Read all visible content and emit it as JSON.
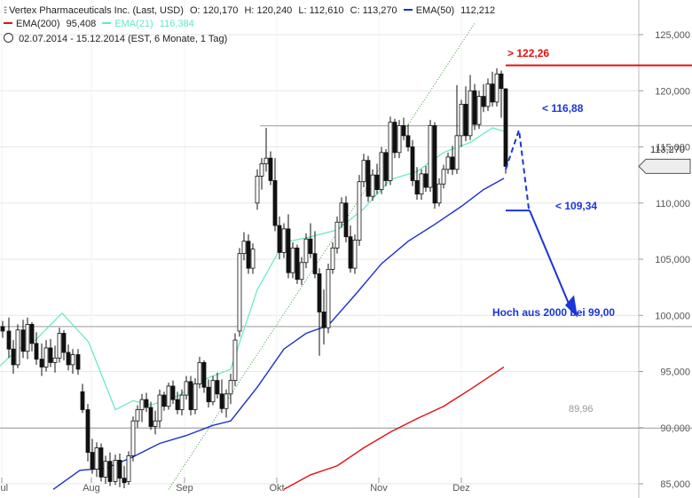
{
  "legend": {
    "line1": {
      "icon": "ohlc-bars-icon",
      "title": "Vertex Pharmaceuticals Inc. (Last, USD)",
      "o": "O: 120,170",
      "h": "H: 120,240",
      "l": "L: 112,610",
      "c": "C: 113,270",
      "ema50_label": "EMA(50)",
      "ema50_value": "112,212"
    },
    "line2": {
      "ema200_label": "EMA(200)",
      "ema200_value": "95,408",
      "ema21_label": "EMA(21)",
      "ema21_value": "116,384"
    },
    "line3": {
      "icon": "clock-icon",
      "text": "02.07.2014 - 15.12.2014 (EST, 6 Monate, 1 Tag)"
    }
  },
  "colors": {
    "ema50": "#1a2fd6",
    "ema21": "#5fe8c8",
    "ema200": "#e31010",
    "target": "#1a35d8",
    "resist": "#e31010",
    "trend": "#3a9a3a"
  },
  "annotations": {
    "resist_122": "> 122,26",
    "level_11688": "< 116,88",
    "level_10934": "< 109,34",
    "hoch": "Hoch aus 2000 bei 99,00",
    "level_8996": "89,96",
    "last_price_tag": "113,270"
  },
  "chart_data": {
    "type": "candlestick",
    "title": "Vertex Pharmaceuticals Inc. (Last, USD)",
    "x_ticks": [
      "Jul",
      "Aug",
      "Sep",
      "Okt",
      "Nov",
      "Dez"
    ],
    "y_ticks": [
      "85,000",
      "90,000",
      "95,000",
      "100,000",
      "105,000",
      "110,000",
      "115,000",
      "120,000",
      "125,000"
    ],
    "ylim": [
      84.5,
      126.0
    ],
    "ohlc_last": {
      "open": 120.17,
      "high": 120.24,
      "low": 112.61,
      "close": 113.27
    },
    "ema50_last": 112.212,
    "ema21_last": 116.384,
    "ema200_last": 95.408,
    "horizontal_levels": [
      116.88,
      99.0,
      89.96,
      122.26
    ],
    "ema21_samples": [
      [
        0,
        95.5
      ],
      [
        20,
        97.0
      ],
      [
        40,
        97.8
      ],
      [
        70,
        100.2
      ],
      [
        100,
        97.6
      ],
      [
        130,
        91.6
      ],
      [
        150,
        92.4
      ],
      [
        170,
        92.0
      ],
      [
        200,
        92.8
      ],
      [
        230,
        94.3
      ],
      [
        260,
        95.2
      ],
      [
        290,
        102.3
      ],
      [
        320,
        106.5
      ],
      [
        345,
        106.9
      ],
      [
        380,
        107.6
      ],
      [
        410,
        109.5
      ],
      [
        440,
        112.1
      ],
      [
        470,
        112.8
      ],
      [
        500,
        114.5
      ],
      [
        530,
        115.4
      ],
      [
        555,
        116.7
      ],
      [
        568,
        116.4
      ]
    ],
    "ema50_samples": [
      [
        60,
        84.5
      ],
      [
        90,
        86.2
      ],
      [
        120,
        86.4
      ],
      [
        150,
        87.4
      ],
      [
        180,
        88.6
      ],
      [
        210,
        89.3
      ],
      [
        240,
        90.2
      ],
      [
        260,
        90.6
      ],
      [
        290,
        93.6
      ],
      [
        320,
        97.0
      ],
      [
        345,
        98.4
      ],
      [
        370,
        99.1
      ],
      [
        400,
        101.8
      ],
      [
        430,
        104.6
      ],
      [
        460,
        106.6
      ],
      [
        490,
        108.1
      ],
      [
        520,
        109.7
      ],
      [
        545,
        111.2
      ],
      [
        568,
        112.2
      ]
    ],
    "ema200_samples": [
      [
        320,
        84.5
      ],
      [
        350,
        85.8
      ],
      [
        380,
        86.6
      ],
      [
        410,
        88.2
      ],
      [
        440,
        89.6
      ],
      [
        470,
        90.8
      ],
      [
        500,
        91.9
      ],
      [
        530,
        93.4
      ],
      [
        568,
        95.4
      ]
    ],
    "trendline": [
      [
        190,
        84.5
      ],
      [
        535,
        126.0
      ]
    ],
    "projection": [
      {
        "price": 116.88,
        "label": "< 116,88"
      },
      {
        "price": 109.34,
        "label": "< 109,34"
      },
      {
        "price": 99.0,
        "label": "Hoch aus 2000 bei 99,00"
      }
    ],
    "candles": [
      [
        3,
        99.0,
        99.5,
        98.0,
        98.6
      ],
      [
        10,
        98.6,
        99.8,
        96.2,
        97.0
      ],
      [
        15,
        97.0,
        97.8,
        94.8,
        95.6
      ],
      [
        20,
        95.6,
        99.2,
        95.3,
        98.7
      ],
      [
        26,
        98.7,
        99.6,
        96.2,
        96.8
      ],
      [
        31,
        96.8,
        99.8,
        96.1,
        99.2
      ],
      [
        36,
        99.2,
        99.4,
        96.8,
        97.5
      ],
      [
        41,
        97.5,
        98.5,
        95.6,
        96.1
      ],
      [
        47,
        96.1,
        97.5,
        94.6,
        95.4
      ],
      [
        52,
        95.4,
        97.8,
        95.0,
        97.1
      ],
      [
        57,
        97.1,
        97.9,
        95.4,
        95.8
      ],
      [
        62,
        95.8,
        97.3,
        94.9,
        96.2
      ],
      [
        67,
        96.2,
        98.9,
        95.8,
        98.4
      ],
      [
        72,
        98.4,
        98.7,
        96.0,
        96.7
      ],
      [
        77,
        96.7,
        97.4,
        95.1,
        95.6
      ],
      [
        82,
        95.6,
        97.0,
        94.8,
        96.5
      ],
      [
        88,
        96.5,
        97.0,
        94.7,
        95.2
      ],
      [
        93,
        93.2,
        93.9,
        91.3,
        91.6
      ],
      [
        99,
        91.6,
        92.1,
        87.0,
        87.8
      ],
      [
        104,
        87.8,
        89.0,
        85.9,
        86.3
      ],
      [
        109,
        86.3,
        88.7,
        85.6,
        88.2
      ],
      [
        114,
        88.2,
        88.6,
        85.2,
        85.6
      ],
      [
        119,
        85.6,
        87.5,
        85.0,
        87.0
      ],
      [
        124,
        87.0,
        87.8,
        84.8,
        85.2
      ],
      [
        130,
        85.2,
        87.6,
        84.9,
        87.1
      ],
      [
        135,
        87.1,
        87.7,
        84.7,
        85.5
      ],
      [
        140,
        85.5,
        86.6,
        84.6,
        85.1
      ],
      [
        145,
        85.2,
        87.9,
        84.9,
        87.5
      ],
      [
        150,
        87.5,
        91.0,
        87.0,
        90.6
      ],
      [
        155,
        90.6,
        92.0,
        90.0,
        91.6
      ],
      [
        160,
        91.6,
        93.0,
        90.5,
        92.5
      ],
      [
        165,
        92.5,
        93.1,
        91.4,
        91.8
      ],
      [
        170,
        91.8,
        92.3,
        89.8,
        90.1
      ],
      [
        175,
        90.1,
        91.5,
        89.4,
        90.6
      ],
      [
        180,
        90.6,
        93.4,
        90.0,
        92.9
      ],
      [
        185,
        92.9,
        93.2,
        91.5,
        91.9
      ],
      [
        190,
        91.9,
        94.0,
        91.6,
        93.7
      ],
      [
        195,
        93.7,
        94.2,
        92.1,
        92.5
      ],
      [
        200,
        92.5,
        93.2,
        91.2,
        91.6
      ],
      [
        205,
        91.6,
        93.4,
        91.1,
        92.9
      ],
      [
        210,
        92.9,
        94.6,
        92.5,
        94.1
      ],
      [
        215,
        94.1,
        94.6,
        91.1,
        91.6
      ],
      [
        220,
        91.6,
        94.4,
        91.2,
        93.9
      ],
      [
        225,
        93.9,
        96.3,
        93.5,
        95.8
      ],
      [
        230,
        95.8,
        96.0,
        93.1,
        93.6
      ],
      [
        235,
        93.6,
        94.3,
        91.8,
        92.3
      ],
      [
        240,
        92.3,
        94.6,
        92.0,
        94.2
      ],
      [
        245,
        94.2,
        94.9,
        92.6,
        93.0
      ],
      [
        250,
        93.0,
        94.3,
        91.3,
        91.7
      ],
      [
        255,
        91.7,
        93.4,
        90.9,
        93.0
      ],
      [
        260,
        93.0,
        94.8,
        92.1,
        94.2
      ],
      [
        265,
        94.2,
        98.4,
        93.7,
        97.8
      ],
      [
        270,
        98.6,
        106.0,
        98.1,
        105.5
      ],
      [
        275,
        105.5,
        107.4,
        104.9,
        106.6
      ],
      [
        280,
        106.6,
        107.2,
        103.7,
        104.2
      ],
      [
        285,
        104.2,
        106.4,
        103.7,
        105.9
      ],
      [
        290,
        110.0,
        113.0,
        109.4,
        112.4
      ],
      [
        295,
        112.4,
        114.0,
        111.2,
        113.5
      ],
      [
        300,
        113.5,
        116.7,
        112.8,
        114.0
      ],
      [
        305,
        114.0,
        114.6,
        111.6,
        112.0
      ],
      [
        310,
        112.0,
        114.0,
        107.5,
        108.0
      ],
      [
        315,
        108.0,
        108.8,
        105.0,
        105.6
      ],
      [
        320,
        105.6,
        108.2,
        105.1,
        107.7
      ],
      [
        325,
        107.7,
        109.0,
        103.3,
        103.8
      ],
      [
        330,
        103.8,
        106.5,
        103.3,
        106.0
      ],
      [
        335,
        106.0,
        106.3,
        102.8,
        103.2
      ],
      [
        340,
        103.2,
        105.2,
        102.7,
        104.7
      ],
      [
        345,
        104.7,
        107.3,
        104.2,
        106.8
      ],
      [
        350,
        106.8,
        108.2,
        105.1,
        105.5
      ],
      [
        355,
        105.5,
        107.5,
        103.3,
        103.7
      ],
      [
        360,
        103.7,
        104.2,
        96.4,
        100.3
      ],
      [
        365,
        100.3,
        102.3,
        97.4,
        98.9
      ],
      [
        370,
        98.9,
        104.6,
        98.4,
        104.1
      ],
      [
        375,
        104.1,
        106.5,
        103.7,
        106.0
      ],
      [
        380,
        106.0,
        108.8,
        105.5,
        108.3
      ],
      [
        385,
        108.3,
        110.5,
        107.8,
        110.0
      ],
      [
        390,
        110.0,
        110.6,
        106.5,
        107.0
      ],
      [
        395,
        107.0,
        108.0,
        103.8,
        104.2
      ],
      [
        400,
        104.2,
        107.2,
        103.7,
        106.7
      ],
      [
        405,
        106.7,
        112.5,
        106.2,
        111.9
      ],
      [
        410,
        111.9,
        114.4,
        111.4,
        113.8
      ],
      [
        415,
        113.8,
        114.2,
        110.1,
        110.6
      ],
      [
        420,
        110.6,
        113.0,
        110.2,
        112.5
      ],
      [
        425,
        112.5,
        113.5,
        110.8,
        111.2
      ],
      [
        430,
        111.2,
        115.0,
        110.8,
        114.5
      ],
      [
        435,
        114.5,
        114.8,
        111.5,
        112.0
      ],
      [
        440,
        112.0,
        117.7,
        111.6,
        117.2
      ],
      [
        445,
        117.2,
        117.5,
        114.0,
        114.5
      ],
      [
        450,
        114.5,
        117.4,
        114.0,
        116.9
      ],
      [
        455,
        116.9,
        117.6,
        115.6,
        116.0
      ],
      [
        460,
        116.0,
        117.0,
        114.6,
        115.0
      ],
      [
        465,
        115.0,
        115.6,
        111.5,
        112.0
      ],
      [
        470,
        112.0,
        113.2,
        110.3,
        110.8
      ],
      [
        475,
        110.8,
        113.0,
        110.3,
        112.6
      ],
      [
        480,
        112.6,
        113.3,
        111.0,
        111.4
      ],
      [
        485,
        111.4,
        117.4,
        111.0,
        116.9
      ],
      [
        490,
        116.9,
        117.2,
        109.5,
        110.0
      ],
      [
        495,
        110.0,
        112.2,
        109.7,
        111.7
      ],
      [
        500,
        111.7,
        113.4,
        111.3,
        113.0
      ],
      [
        505,
        113.0,
        114.5,
        112.6,
        114.1
      ],
      [
        510,
        114.1,
        115.1,
        112.5,
        113.0
      ],
      [
        515,
        113.0,
        120.5,
        112.6,
        116.0
      ],
      [
        520,
        116.0,
        119.2,
        115.0,
        118.8
      ],
      [
        525,
        118.8,
        120.4,
        115.5,
        116.0
      ],
      [
        530,
        116.0,
        121.4,
        115.6,
        120.0
      ],
      [
        535,
        120.0,
        120.6,
        116.5,
        117.0
      ],
      [
        540,
        117.0,
        120.0,
        116.6,
        119.5
      ],
      [
        545,
        119.5,
        120.6,
        118.1,
        118.6
      ],
      [
        550,
        118.6,
        121.1,
        118.2,
        120.6
      ],
      [
        555,
        120.6,
        121.7,
        118.6,
        119.0
      ],
      [
        560,
        119.0,
        122.0,
        118.6,
        121.5
      ],
      [
        565,
        121.5,
        121.8,
        117.6,
        120.2
      ],
      [
        570,
        120.17,
        120.24,
        112.61,
        113.27
      ]
    ]
  }
}
